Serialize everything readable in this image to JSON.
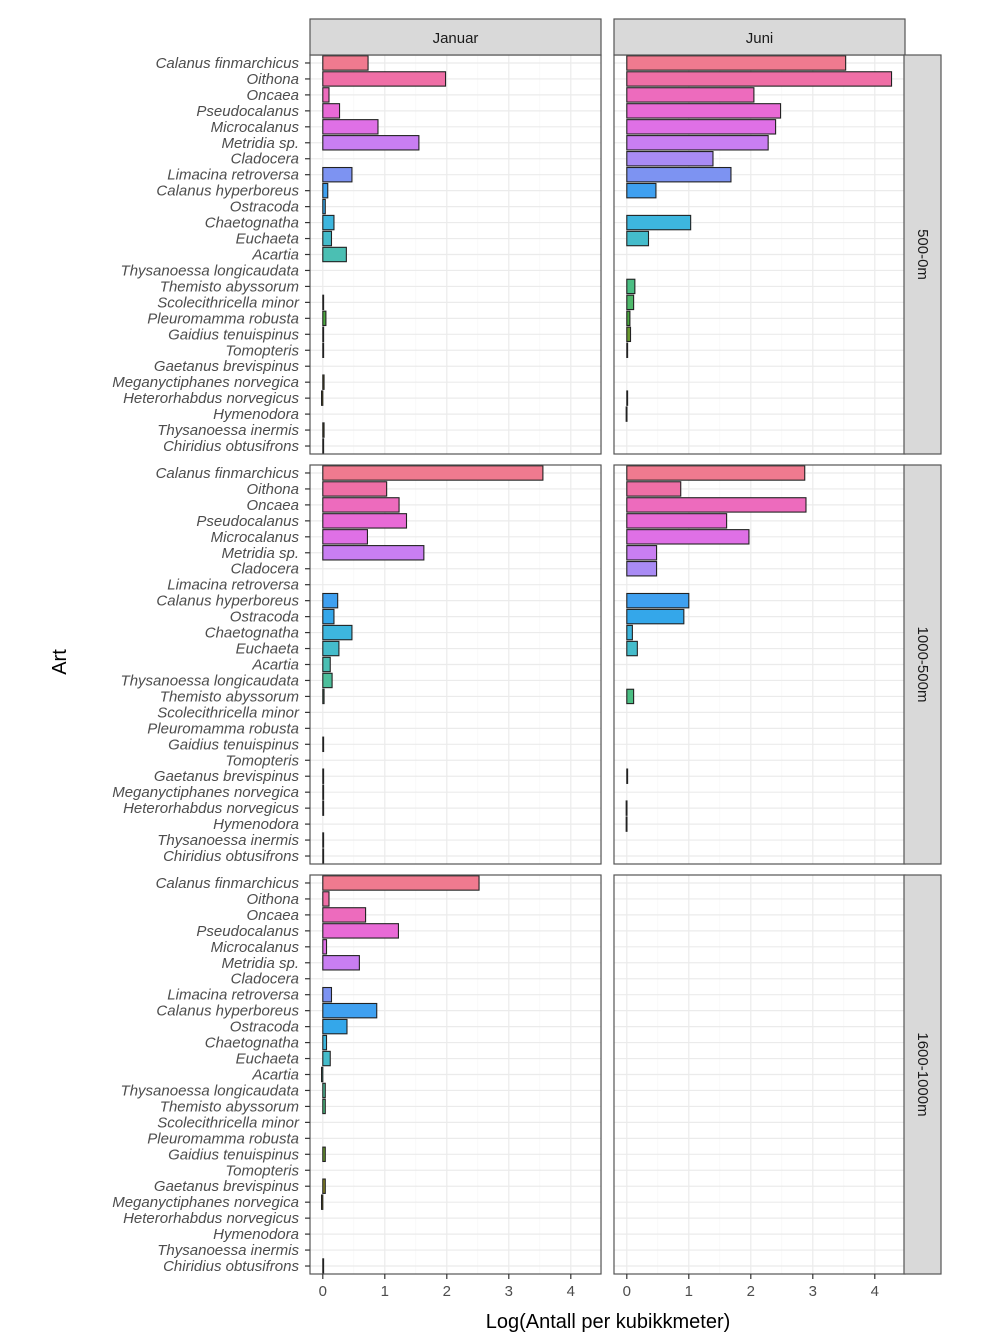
{
  "chart_data": {
    "type": "bar",
    "orientation": "horizontal",
    "title": "",
    "xlabel": "Log(Antall per kubikkmeter)",
    "ylabel": "Art",
    "xlim": [
      -0.2,
      4.5
    ],
    "xticks": [
      0,
      1,
      2,
      3,
      4
    ],
    "grid": true,
    "legend": "none",
    "column_facets": [
      "Januar",
      "Juni"
    ],
    "row_facets": [
      "500-0m",
      "1000-500m",
      "1600-1000m"
    ],
    "categories": [
      "Calanus finmarchicus",
      "Oithona",
      "Oncaea",
      "Pseudocalanus",
      "Microcalanus",
      "Metridia sp.",
      "Cladocera",
      "Limacina retroversa",
      "Calanus hyperboreus",
      "Ostracoda",
      "Chaetognatha",
      "Euchaeta",
      "Acartia",
      "Thysanoessa longicaudata",
      "Themisto abyssorum",
      "Scolecithricella minor",
      "Pleuromamma robusta",
      "Gaidius tenuispinus",
      "Tomopteris",
      "Gaetanus brevispinus",
      "Meganyctiphanes norvegica",
      "Heterorhabdus norvegicus",
      "Hymenodora",
      "Thysanoessa inermis",
      "Chiridius obtusifrons"
    ],
    "category_colors": [
      "#f07a8f",
      "#ef6fa6",
      "#ed6bbd",
      "#e86ad6",
      "#df70e6",
      "#c97ef2",
      "#a98bf4",
      "#7d93f2",
      "#3fa0f0",
      "#34a7ea",
      "#3db6de",
      "#44bccb",
      "#4bbfb3",
      "#4dbf9c",
      "#4bbe83",
      "#4fb96b",
      "#4aa73f",
      "#6a9a2f",
      "#7e8e25",
      "#8c8a23",
      "#90831f",
      "#8a7a1c",
      "#857319",
      "#7f6c16",
      "#786513"
    ],
    "panels": [
      {
        "row": "500-0m",
        "col": "Januar",
        "values": [
          0.73,
          1.98,
          0.1,
          0.27,
          0.89,
          1.55,
          null,
          0.47,
          0.08,
          0.04,
          0.18,
          0.14,
          0.38,
          null,
          null,
          0.01,
          0.05,
          0.01,
          0.01,
          null,
          0.02,
          -0.02,
          null,
          0.02,
          0.01
        ]
      },
      {
        "row": "500-0m",
        "col": "Juni",
        "values": [
          3.53,
          4.27,
          2.05,
          2.48,
          2.4,
          2.28,
          1.39,
          1.68,
          0.47,
          null,
          1.03,
          0.35,
          null,
          null,
          0.13,
          0.11,
          0.05,
          0.06,
          0.01,
          null,
          null,
          0.01,
          -0.01,
          null,
          null
        ]
      },
      {
        "row": "1000-500m",
        "col": "Januar",
        "values": [
          3.55,
          1.03,
          1.23,
          1.35,
          0.72,
          1.63,
          null,
          null,
          0.24,
          0.18,
          0.47,
          0.26,
          0.12,
          0.15,
          0.02,
          null,
          null,
          0.01,
          null,
          0.01,
          0.01,
          0.01,
          null,
          0.01,
          0.01
        ]
      },
      {
        "row": "1000-500m",
        "col": "Juni",
        "values": [
          2.87,
          0.87,
          2.89,
          1.61,
          1.97,
          0.48,
          0.48,
          null,
          1.0,
          0.92,
          0.09,
          0.17,
          null,
          null,
          0.11,
          null,
          null,
          null,
          null,
          0.01,
          null,
          -0.01,
          -0.01,
          null,
          null
        ]
      },
      {
        "row": "1600-1000m",
        "col": "Januar",
        "values": [
          2.52,
          0.1,
          0.69,
          1.22,
          0.06,
          0.59,
          null,
          0.14,
          0.87,
          0.39,
          0.06,
          0.12,
          -0.02,
          0.04,
          0.04,
          null,
          null,
          0.04,
          null,
          0.04,
          -0.02,
          null,
          null,
          null,
          0.01
        ]
      },
      {
        "row": "1600-1000m",
        "col": "Juni",
        "values": [
          null,
          null,
          null,
          null,
          null,
          null,
          null,
          null,
          null,
          null,
          null,
          null,
          null,
          null,
          null,
          null,
          null,
          null,
          null,
          null,
          null,
          null,
          null,
          null,
          null
        ]
      }
    ]
  }
}
